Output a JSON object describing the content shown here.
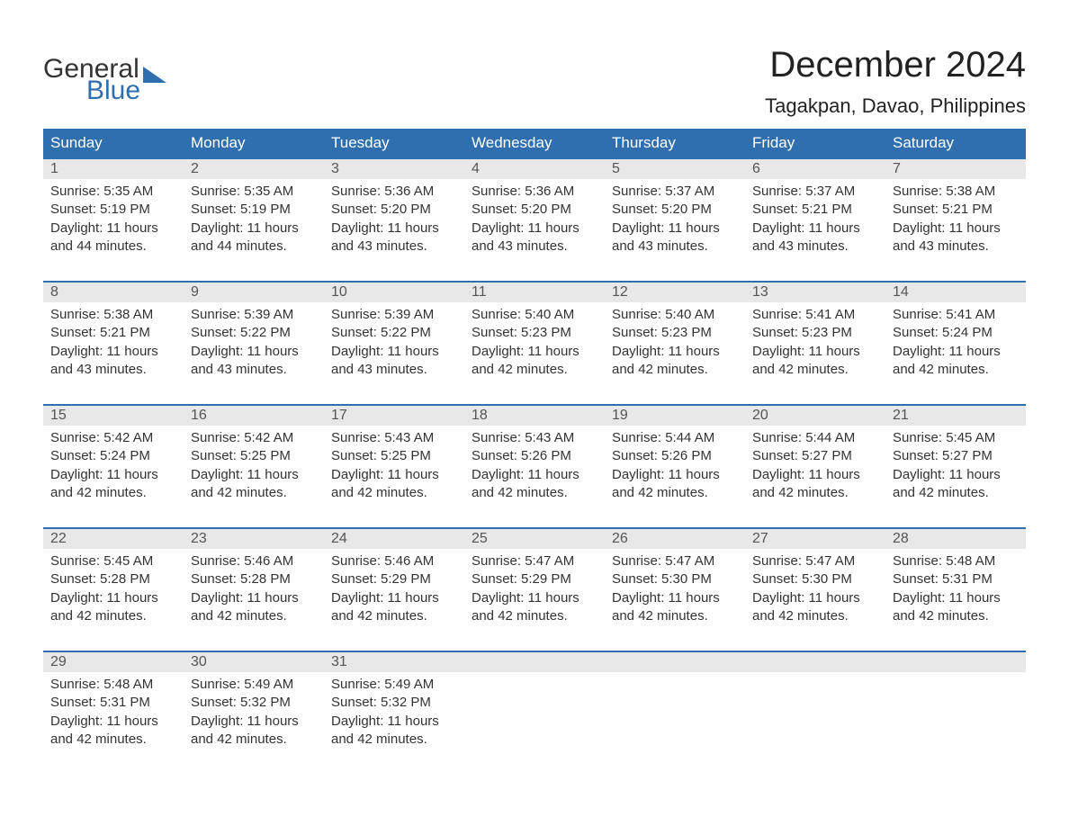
{
  "brand": {
    "word1": "General",
    "word2": "Blue",
    "text_color": "#333333",
    "accent_color": "#2f6fb0"
  },
  "title": "December 2024",
  "location": "Tagakpan, Davao, Philippines",
  "colors": {
    "header_bg": "#2f6fb0",
    "header_text": "#ffffff",
    "daynum_bg": "#e8e8e8",
    "week_border": "#2f6fb0",
    "body_text": "#333333",
    "background": "#ffffff"
  },
  "fonts": {
    "title_size_pt": 30,
    "location_size_pt": 17,
    "dow_size_pt": 13,
    "body_size_pt": 11
  },
  "days_of_week": [
    "Sunday",
    "Monday",
    "Tuesday",
    "Wednesday",
    "Thursday",
    "Friday",
    "Saturday"
  ],
  "weeks": [
    [
      {
        "n": "1",
        "sunrise": "Sunrise: 5:35 AM",
        "sunset": "Sunset: 5:19 PM",
        "d1": "Daylight: 11 hours",
        "d2": "and 44 minutes."
      },
      {
        "n": "2",
        "sunrise": "Sunrise: 5:35 AM",
        "sunset": "Sunset: 5:19 PM",
        "d1": "Daylight: 11 hours",
        "d2": "and 44 minutes."
      },
      {
        "n": "3",
        "sunrise": "Sunrise: 5:36 AM",
        "sunset": "Sunset: 5:20 PM",
        "d1": "Daylight: 11 hours",
        "d2": "and 43 minutes."
      },
      {
        "n": "4",
        "sunrise": "Sunrise: 5:36 AM",
        "sunset": "Sunset: 5:20 PM",
        "d1": "Daylight: 11 hours",
        "d2": "and 43 minutes."
      },
      {
        "n": "5",
        "sunrise": "Sunrise: 5:37 AM",
        "sunset": "Sunset: 5:20 PM",
        "d1": "Daylight: 11 hours",
        "d2": "and 43 minutes."
      },
      {
        "n": "6",
        "sunrise": "Sunrise: 5:37 AM",
        "sunset": "Sunset: 5:21 PM",
        "d1": "Daylight: 11 hours",
        "d2": "and 43 minutes."
      },
      {
        "n": "7",
        "sunrise": "Sunrise: 5:38 AM",
        "sunset": "Sunset: 5:21 PM",
        "d1": "Daylight: 11 hours",
        "d2": "and 43 minutes."
      }
    ],
    [
      {
        "n": "8",
        "sunrise": "Sunrise: 5:38 AM",
        "sunset": "Sunset: 5:21 PM",
        "d1": "Daylight: 11 hours",
        "d2": "and 43 minutes."
      },
      {
        "n": "9",
        "sunrise": "Sunrise: 5:39 AM",
        "sunset": "Sunset: 5:22 PM",
        "d1": "Daylight: 11 hours",
        "d2": "and 43 minutes."
      },
      {
        "n": "10",
        "sunrise": "Sunrise: 5:39 AM",
        "sunset": "Sunset: 5:22 PM",
        "d1": "Daylight: 11 hours",
        "d2": "and 43 minutes."
      },
      {
        "n": "11",
        "sunrise": "Sunrise: 5:40 AM",
        "sunset": "Sunset: 5:23 PM",
        "d1": "Daylight: 11 hours",
        "d2": "and 42 minutes."
      },
      {
        "n": "12",
        "sunrise": "Sunrise: 5:40 AM",
        "sunset": "Sunset: 5:23 PM",
        "d1": "Daylight: 11 hours",
        "d2": "and 42 minutes."
      },
      {
        "n": "13",
        "sunrise": "Sunrise: 5:41 AM",
        "sunset": "Sunset: 5:23 PM",
        "d1": "Daylight: 11 hours",
        "d2": "and 42 minutes."
      },
      {
        "n": "14",
        "sunrise": "Sunrise: 5:41 AM",
        "sunset": "Sunset: 5:24 PM",
        "d1": "Daylight: 11 hours",
        "d2": "and 42 minutes."
      }
    ],
    [
      {
        "n": "15",
        "sunrise": "Sunrise: 5:42 AM",
        "sunset": "Sunset: 5:24 PM",
        "d1": "Daylight: 11 hours",
        "d2": "and 42 minutes."
      },
      {
        "n": "16",
        "sunrise": "Sunrise: 5:42 AM",
        "sunset": "Sunset: 5:25 PM",
        "d1": "Daylight: 11 hours",
        "d2": "and 42 minutes."
      },
      {
        "n": "17",
        "sunrise": "Sunrise: 5:43 AM",
        "sunset": "Sunset: 5:25 PM",
        "d1": "Daylight: 11 hours",
        "d2": "and 42 minutes."
      },
      {
        "n": "18",
        "sunrise": "Sunrise: 5:43 AM",
        "sunset": "Sunset: 5:26 PM",
        "d1": "Daylight: 11 hours",
        "d2": "and 42 minutes."
      },
      {
        "n": "19",
        "sunrise": "Sunrise: 5:44 AM",
        "sunset": "Sunset: 5:26 PM",
        "d1": "Daylight: 11 hours",
        "d2": "and 42 minutes."
      },
      {
        "n": "20",
        "sunrise": "Sunrise: 5:44 AM",
        "sunset": "Sunset: 5:27 PM",
        "d1": "Daylight: 11 hours",
        "d2": "and 42 minutes."
      },
      {
        "n": "21",
        "sunrise": "Sunrise: 5:45 AM",
        "sunset": "Sunset: 5:27 PM",
        "d1": "Daylight: 11 hours",
        "d2": "and 42 minutes."
      }
    ],
    [
      {
        "n": "22",
        "sunrise": "Sunrise: 5:45 AM",
        "sunset": "Sunset: 5:28 PM",
        "d1": "Daylight: 11 hours",
        "d2": "and 42 minutes."
      },
      {
        "n": "23",
        "sunrise": "Sunrise: 5:46 AM",
        "sunset": "Sunset: 5:28 PM",
        "d1": "Daylight: 11 hours",
        "d2": "and 42 minutes."
      },
      {
        "n": "24",
        "sunrise": "Sunrise: 5:46 AM",
        "sunset": "Sunset: 5:29 PM",
        "d1": "Daylight: 11 hours",
        "d2": "and 42 minutes."
      },
      {
        "n": "25",
        "sunrise": "Sunrise: 5:47 AM",
        "sunset": "Sunset: 5:29 PM",
        "d1": "Daylight: 11 hours",
        "d2": "and 42 minutes."
      },
      {
        "n": "26",
        "sunrise": "Sunrise: 5:47 AM",
        "sunset": "Sunset: 5:30 PM",
        "d1": "Daylight: 11 hours",
        "d2": "and 42 minutes."
      },
      {
        "n": "27",
        "sunrise": "Sunrise: 5:47 AM",
        "sunset": "Sunset: 5:30 PM",
        "d1": "Daylight: 11 hours",
        "d2": "and 42 minutes."
      },
      {
        "n": "28",
        "sunrise": "Sunrise: 5:48 AM",
        "sunset": "Sunset: 5:31 PM",
        "d1": "Daylight: 11 hours",
        "d2": "and 42 minutes."
      }
    ],
    [
      {
        "n": "29",
        "sunrise": "Sunrise: 5:48 AM",
        "sunset": "Sunset: 5:31 PM",
        "d1": "Daylight: 11 hours",
        "d2": "and 42 minutes."
      },
      {
        "n": "30",
        "sunrise": "Sunrise: 5:49 AM",
        "sunset": "Sunset: 5:32 PM",
        "d1": "Daylight: 11 hours",
        "d2": "and 42 minutes."
      },
      {
        "n": "31",
        "sunrise": "Sunrise: 5:49 AM",
        "sunset": "Sunset: 5:32 PM",
        "d1": "Daylight: 11 hours",
        "d2": "and 42 minutes."
      },
      null,
      null,
      null,
      null
    ]
  ]
}
